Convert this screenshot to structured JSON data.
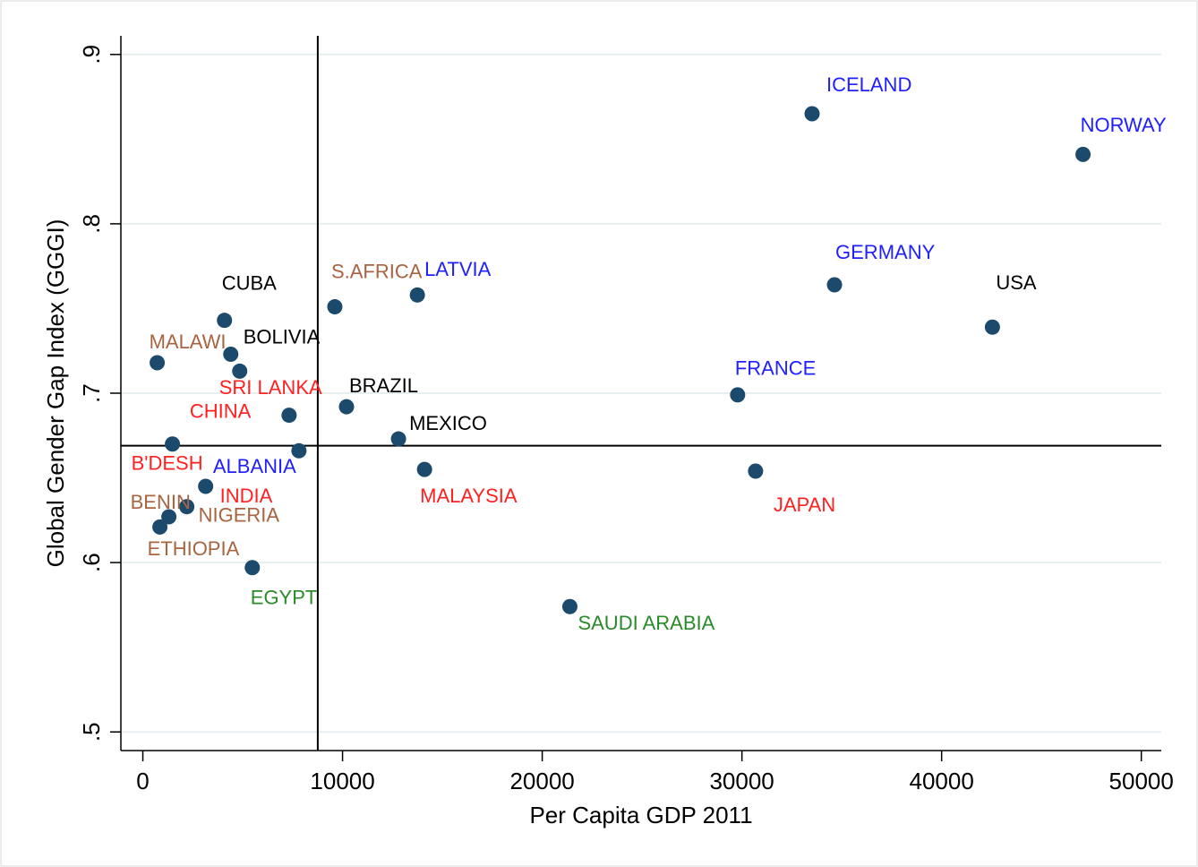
{
  "chart_data": {
    "type": "scatter",
    "xlabel": "Per Capita GDP 2011",
    "ylabel": "Global Gender Gap Index (GGGI)",
    "xlim": [
      -1100,
      51000
    ],
    "ylim": [
      0.489,
      0.911
    ],
    "xticks": [
      0,
      10000,
      20000,
      30000,
      40000,
      50000
    ],
    "yticks": [
      {
        "value": 0.5,
        "label": ".5"
      },
      {
        "value": 0.6,
        "label": ".6"
      },
      {
        "value": 0.7,
        "label": ".7"
      },
      {
        "value": 0.8,
        "label": ".8"
      },
      {
        "value": 0.9,
        "label": ".9"
      }
    ],
    "grid": true,
    "vlines": [
      8760
    ],
    "hlines": [
      0.669
    ],
    "color": "#1c4a6c",
    "labels": [
      "ICELAND",
      "NORWAY",
      "GERMANY",
      "USA",
      "FRANCE",
      "JAPAN",
      "SAUDI ARABIA",
      "LATVIA",
      "S.AFRICA",
      "BRAZIL",
      "MEXICO",
      "MALAYSIA",
      "CUBA",
      "BOLIVIA",
      "SRI LANKA",
      "MALAWI",
      "CHINA",
      "ALBANIA",
      "B'DESH",
      "INDIA",
      "NIGERIA",
      "BENIN",
      "ETHIOPIA",
      "EGYPT"
    ],
    "label_colors": [
      "#2020ff",
      "#2020ff",
      "#2020ff",
      "#000000",
      "#2020ff",
      "#ff2020",
      "#2a8a2a",
      "#2020ff",
      "#a86440",
      "#000000",
      "#000000",
      "#ff2020",
      "#000000",
      "#000000",
      "#ff2020",
      "#a86440",
      "#ff2020",
      "#2020ff",
      "#ff2020",
      "#ff2020",
      "#a86440",
      "#a86440",
      "#a86440",
      "#2a8a2a"
    ],
    "x": [
      33513,
      47080,
      34636,
      42543,
      29784,
      30683,
      21384,
      13747,
      9614,
      10198,
      12803,
      14106,
      4088,
      4403,
      4852,
      719,
      7323,
      7817,
      1482,
      3145,
      2201,
      1303,
      854,
      5481
    ],
    "values": [
      0.865,
      0.841,
      0.764,
      0.739,
      0.699,
      0.654,
      0.574,
      0.758,
      0.751,
      0.692,
      0.673,
      0.655,
      0.743,
      0.723,
      0.713,
      0.718,
      0.687,
      0.666,
      0.67,
      0.645,
      0.633,
      0.627,
      0.621,
      0.597
    ]
  }
}
